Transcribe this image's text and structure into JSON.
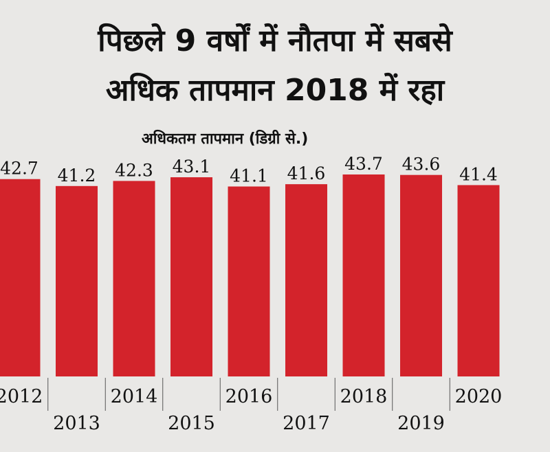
{
  "title_line1": "पिछले 9 वर्षों में नौतपा में सबसे",
  "title_line2": "अधिक तापमान 2018 में रहा",
  "subtitle": "अधिकतम तापमान (डिग्री से.)",
  "chart_data": {
    "type": "bar",
    "categories": [
      "2012",
      "2013",
      "2014",
      "2015",
      "2016",
      "2017",
      "2018",
      "2019",
      "2020"
    ],
    "values": [
      42.7,
      41.2,
      42.3,
      43.1,
      41.1,
      41.6,
      43.7,
      43.6,
      41.4
    ],
    "data_labels": [
      "42.7",
      "41.2",
      "42.3",
      "43.1",
      "41.1",
      "41.6",
      "43.7",
      "43.6",
      "41.4"
    ],
    "bar_color": "#d3232b",
    "title": "पिछले 9 वर्षों में नौतपा में सबसे अधिक तापमान 2018 में रहा",
    "ylabel": "अधिकतम तापमान (डिग्री से.)",
    "xlabel": "",
    "ylim": [
      0,
      43.7
    ],
    "grid": false,
    "legend": "none"
  }
}
